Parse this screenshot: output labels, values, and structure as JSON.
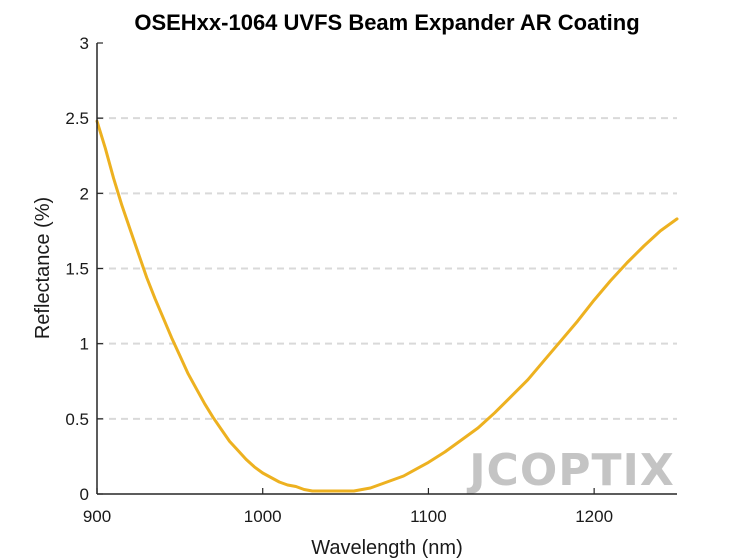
{
  "chart_data": {
    "type": "line",
    "title": "OSEHxx-1064 UVFS Beam Expander AR Coating",
    "xlabel": "Wavelength (nm)",
    "ylabel": "Reflectance (%)",
    "xlim": [
      900,
      1250
    ],
    "ylim": [
      0,
      3
    ],
    "xticks": [
      900,
      1000,
      1100,
      1200
    ],
    "yticks": [
      0,
      0.5,
      1,
      1.5,
      2,
      2.5,
      3
    ],
    "xtick_labels": [
      "900",
      "1000",
      "1100",
      "1200"
    ],
    "ytick_labels": [
      "0",
      "0.5",
      "1",
      "1.5",
      "2",
      "2.5",
      "3"
    ],
    "grid": "horizontal-dashed",
    "line_color": "#EDB120",
    "series": [
      {
        "x": [
          900,
          905,
          910,
          915,
          920,
          925,
          930,
          935,
          940,
          945,
          950,
          955,
          960,
          965,
          970,
          975,
          980,
          985,
          990,
          995,
          1000,
          1005,
          1010,
          1015,
          1020,
          1025,
          1030,
          1035,
          1040,
          1045,
          1050,
          1055,
          1060,
          1065,
          1070,
          1075,
          1080,
          1085,
          1090,
          1095,
          1100,
          1110,
          1120,
          1130,
          1140,
          1150,
          1160,
          1170,
          1180,
          1190,
          1200,
          1210,
          1220,
          1230,
          1240,
          1250
        ],
        "y": [
          2.48,
          2.3,
          2.1,
          1.92,
          1.76,
          1.6,
          1.44,
          1.3,
          1.17,
          1.04,
          0.92,
          0.8,
          0.7,
          0.6,
          0.51,
          0.43,
          0.35,
          0.29,
          0.23,
          0.18,
          0.14,
          0.11,
          0.08,
          0.06,
          0.05,
          0.03,
          0.02,
          0.02,
          0.02,
          0.02,
          0.02,
          0.02,
          0.03,
          0.04,
          0.06,
          0.08,
          0.1,
          0.12,
          0.15,
          0.18,
          0.21,
          0.28,
          0.36,
          0.44,
          0.54,
          0.65,
          0.76,
          0.89,
          1.02,
          1.15,
          1.29,
          1.42,
          1.54,
          1.65,
          1.75,
          1.83
        ]
      }
    ]
  },
  "watermark": "JCOPTIX"
}
